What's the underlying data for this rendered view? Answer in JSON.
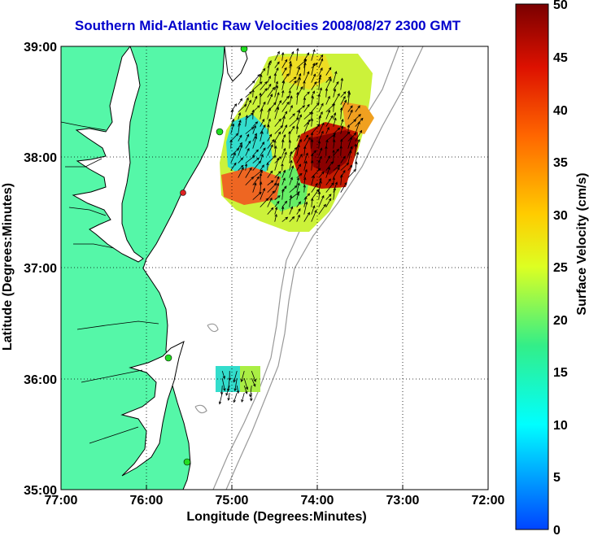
{
  "title": "Southern Mid-Atlantic Raw Velocities 2008/08/27 2300 GMT",
  "x_axis": {
    "label": "Longitude (Degrees:Minutes)",
    "ticks": [
      "77:00",
      "76:00",
      "75:00",
      "74:00",
      "73:00",
      "72:00"
    ],
    "range": [
      -77,
      -72
    ]
  },
  "y_axis": {
    "label": "Latitude (Degrees:Minutes)",
    "ticks": [
      "39:00",
      "38:00",
      "37:00",
      "36:00",
      "35:00"
    ],
    "range": [
      35,
      39
    ]
  },
  "colorbar": {
    "label": "Surface Velocity (cm/s)",
    "ticks": [
      "50",
      "45",
      "40",
      "35",
      "30",
      "25",
      "20",
      "15",
      "10",
      "5",
      "0"
    ],
    "range": [
      0,
      50
    ]
  },
  "grid": "dotted",
  "colors": {
    "land": "#55f7a8",
    "coastline": "#000000",
    "bathymetry": "#999999",
    "title": "#0000cc",
    "station": "#22dd22",
    "station_alt": "#dd2222"
  },
  "velocity_regions": [
    {
      "name": "northern-field",
      "lon_range": [
        -75.05,
        -73.5
      ],
      "lat_range": [
        37.4,
        38.9
      ]
    },
    {
      "name": "southern-field",
      "lon_range": [
        -75.15,
        -74.7
      ],
      "lat_range": [
        35.85,
        36.1
      ]
    }
  ]
}
